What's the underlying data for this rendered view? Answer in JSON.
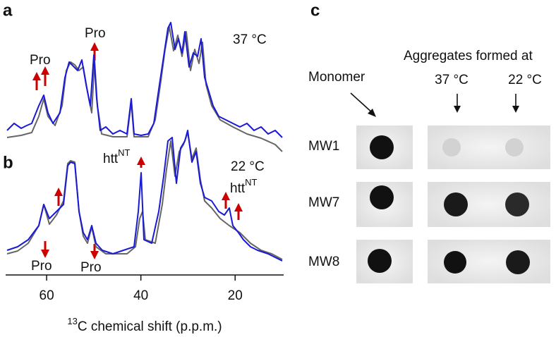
{
  "panel_a": {
    "label": "a",
    "temperature": "37 °C",
    "annotations": [
      "Pro",
      "Pro"
    ]
  },
  "panel_b": {
    "label": "b",
    "temperature": "22 °C",
    "annotations": [
      {
        "text": "htt",
        "superscript": "NT"
      },
      {
        "text": "htt",
        "superscript": "NT"
      }
    ],
    "bottom_annotations": [
      "Pro",
      "Pro"
    ]
  },
  "x_axis": {
    "label": {
      "superscript": "13",
      "text": "C chemical shift (p.p.m.)"
    },
    "xlim": [
      68.4,
      10
    ],
    "xticks": [
      60,
      40,
      20
    ]
  },
  "panel_c": {
    "label": "c",
    "monomer": "Monomer",
    "group": "Aggregates formed at",
    "columns": [
      "37 °C",
      "22 °C"
    ],
    "rows": [
      "MW1",
      "MW7",
      "MW8"
    ]
  }
}
